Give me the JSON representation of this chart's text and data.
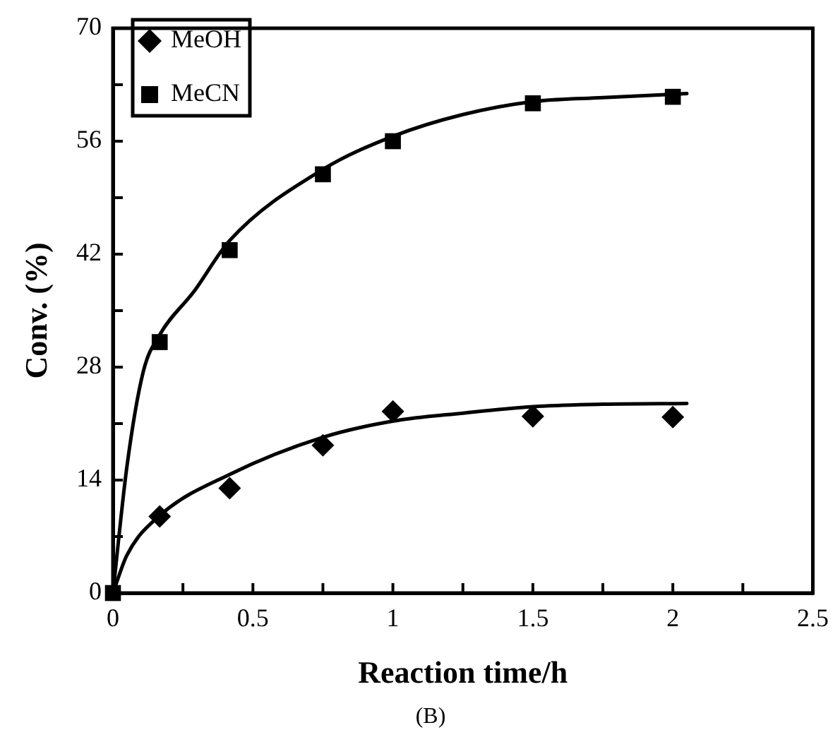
{
  "chart_data": {
    "type": "line",
    "xlabel": "Reaction time/h",
    "ylabel": "Conv. (%)",
    "annotations": [
      "(B)"
    ],
    "xlim": [
      0,
      2.5
    ],
    "xticks": [
      0,
      {
        "value": 0.25,
        "label": null
      },
      0.5,
      {
        "value": 0.75,
        "label": null
      },
      1,
      {
        "value": 1.25,
        "label": null
      },
      1.5,
      {
        "value": 1.75,
        "label": null
      },
      2,
      {
        "value": 2.25,
        "label": null
      },
      2.5
    ],
    "ylim": [
      0,
      70
    ],
    "yticks": [
      0,
      {
        "value": 7,
        "label": null
      },
      14,
      {
        "value": 21,
        "label": null
      },
      28,
      {
        "value": 35,
        "label": null
      },
      42,
      {
        "value": 49,
        "label": null
      },
      56,
      {
        "value": 63,
        "label": null
      },
      70
    ],
    "grid": false,
    "legend": "top left",
    "line_style": "solid",
    "series": [
      {
        "name": "MeOH",
        "type": "scatter",
        "marker": "diamond",
        "color": "#000000",
        "x": [
          0.167,
          0.417,
          0.75,
          1,
          1.5,
          2
        ],
        "values": [
          9.5,
          13,
          18.3,
          22.5,
          21.9,
          21.8
        ]
      },
      {
        "name": "MeCN",
        "type": "scatter",
        "marker": "square",
        "color": "#000000",
        "x": [
          0,
          0.167,
          0.417,
          0.75,
          1,
          1.5,
          2
        ],
        "values": [
          0,
          31.1,
          42.5,
          51.9,
          56,
          60.7,
          61.5
        ]
      },
      {
        "type": "line",
        "marker": "none",
        "color": "#000000",
        "x": [
          0,
          0.05,
          0.167,
          0.417,
          0.75,
          1,
          1.25,
          1.5,
          1.75,
          2.05
        ],
        "values": [
          0,
          4.7,
          9.6,
          14.7,
          19.3,
          21.3,
          22.3,
          23.1,
          23.4,
          23.5
        ]
      },
      {
        "type": "line",
        "marker": "none",
        "color": "#000000",
        "x": [
          0,
          0.05,
          0.108,
          0.167,
          0.29,
          0.417,
          0.75,
          1,
          1.25,
          1.5,
          1.75,
          2.05
        ],
        "values": [
          0,
          15.7,
          27.4,
          32,
          37.4,
          43.7,
          52.5,
          56.6,
          59.3,
          60.9,
          61.4,
          61.9
        ]
      }
    ]
  }
}
